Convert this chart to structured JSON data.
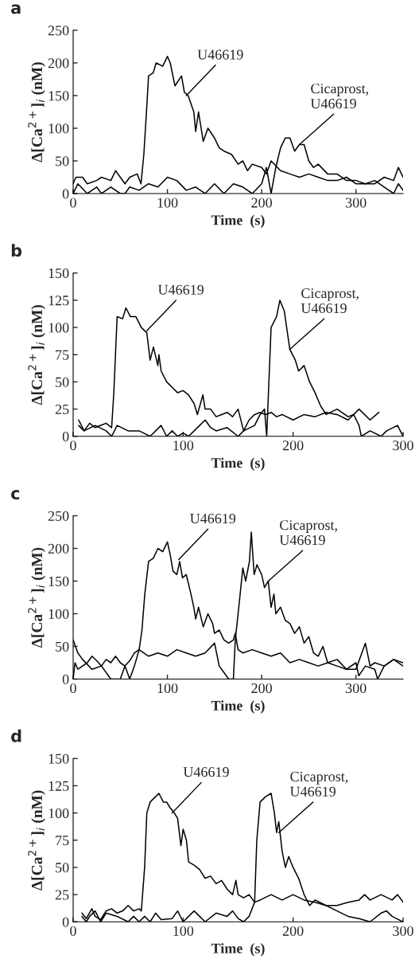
{
  "chart_data": [
    {
      "type": "line",
      "title": "a",
      "xlabel": "Time  (s)",
      "ylabel": "Δ[Ca$^{2+}$]$_{i}$ (nM)",
      "xlim": [
        0,
        350
      ],
      "xticks": [
        0,
        100,
        200,
        300
      ],
      "ylim": [
        0,
        250
      ],
      "yticks": [
        0,
        50,
        100,
        150,
        200,
        250
      ],
      "grid": false,
      "legend": false,
      "marker": "none",
      "line_style": "solid",
      "annotations": [
        {
          "text": "U46619",
          "x": 120,
          "y": 150
        },
        {
          "text": "Cicaprost,\nU46619",
          "x": 240,
          "y": 75
        }
      ],
      "series": [
        {
          "color": "#000000",
          "x": [
            0,
            3,
            10,
            15,
            25,
            30,
            40,
            45,
            50,
            55,
            60,
            68,
            72,
            75,
            78,
            80,
            85,
            88,
            95,
            100,
            103,
            108,
            115,
            118,
            122,
            128,
            130,
            133,
            138,
            143,
            150,
            155,
            160,
            168,
            175,
            180,
            185,
            190,
            200,
            205,
            210,
            220,
            230,
            240,
            250,
            260,
            270,
            280,
            290,
            300,
            310,
            320,
            330,
            340,
            345,
            350
          ],
          "values": [
            15,
            25,
            25,
            15,
            20,
            25,
            20,
            35,
            25,
            15,
            25,
            30,
            15,
            60,
            130,
            180,
            185,
            200,
            195,
            210,
            200,
            165,
            180,
            155,
            150,
            125,
            95,
            125,
            80,
            100,
            85,
            70,
            65,
            60,
            45,
            50,
            35,
            45,
            40,
            30,
            50,
            35,
            30,
            25,
            30,
            25,
            20,
            20,
            25,
            15,
            15,
            15,
            25,
            20,
            40,
            25
          ]
        },
        {
          "color": "#000000",
          "x": [
            0,
            5,
            15,
            25,
            30,
            40,
            50,
            55,
            60,
            70,
            80,
            90,
            100,
            110,
            120,
            130,
            140,
            150,
            160,
            170,
            180,
            190,
            200,
            205,
            210,
            215,
            220,
            225,
            230,
            235,
            240,
            245,
            250,
            255,
            260,
            270,
            280,
            290,
            300,
            310,
            320,
            330,
            340,
            345,
            350
          ],
          "values": [
            0,
            15,
            0,
            10,
            0,
            10,
            0,
            0,
            10,
            5,
            15,
            10,
            25,
            20,
            5,
            10,
            0,
            15,
            0,
            15,
            10,
            0,
            15,
            40,
            0,
            40,
            70,
            85,
            85,
            65,
            75,
            75,
            50,
            40,
            45,
            30,
            30,
            20,
            20,
            15,
            20,
            10,
            0,
            15,
            5
          ]
        }
      ]
    },
    {
      "type": "line",
      "title": "b",
      "xlabel": "Time  (s)",
      "ylabel": "Δ[Ca$^{2+}$]$_{i}$ (nM)",
      "xlim": [
        0,
        300
      ],
      "xticks": [
        0,
        100,
        200,
        300
      ],
      "ylim": [
        0,
        150
      ],
      "yticks": [
        0,
        25,
        50,
        75,
        100,
        125,
        150
      ],
      "grid": false,
      "legend": false,
      "marker": "none",
      "line_style": "solid",
      "annotations": [
        {
          "text": "U46619",
          "x": 67,
          "y": 97
        },
        {
          "text": "Cicaprost,\nU46619",
          "x": 197,
          "y": 80
        }
      ],
      "series": [
        {
          "color": "#000000",
          "x": [
            5,
            10,
            15,
            20,
            25,
            30,
            35,
            37,
            40,
            45,
            48,
            52,
            57,
            62,
            67,
            70,
            73,
            77,
            78,
            80,
            85,
            90,
            95,
            100,
            105,
            110,
            113,
            118,
            120,
            125,
            130,
            135,
            140,
            145,
            150,
            155,
            160,
            165,
            170,
            175,
            180,
            185,
            190,
            200,
            210,
            220,
            230,
            240,
            250,
            260,
            270,
            278
          ],
          "values": [
            15,
            5,
            12,
            8,
            10,
            12,
            8,
            40,
            110,
            108,
            118,
            110,
            110,
            100,
            95,
            70,
            82,
            65,
            75,
            60,
            50,
            45,
            40,
            42,
            38,
            30,
            20,
            38,
            25,
            25,
            18,
            20,
            22,
            18,
            25,
            5,
            15,
            20,
            22,
            20,
            22,
            18,
            20,
            15,
            20,
            18,
            22,
            20,
            15,
            25,
            15,
            22
          ]
        },
        {
          "color": "#000000",
          "x": [
            5,
            10,
            20,
            30,
            35,
            40,
            50,
            60,
            70,
            80,
            85,
            90,
            95,
            100,
            105,
            115,
            120,
            125,
            130,
            140,
            150,
            155,
            165,
            170,
            174,
            176,
            180,
            185,
            188,
            192,
            197,
            202,
            205,
            210,
            215,
            220,
            225,
            230,
            240,
            250,
            255,
            260,
            262,
            270,
            280,
            285,
            295,
            300
          ],
          "values": [
            10,
            5,
            10,
            5,
            0,
            10,
            5,
            5,
            0,
            10,
            0,
            5,
            0,
            3,
            0,
            10,
            15,
            8,
            5,
            8,
            0,
            5,
            10,
            20,
            25,
            0,
            100,
            110,
            125,
            115,
            80,
            70,
            60,
            65,
            50,
            40,
            28,
            20,
            25,
            18,
            20,
            10,
            0,
            5,
            0,
            5,
            10,
            0
          ]
        }
      ]
    },
    {
      "type": "line",
      "title": "c",
      "xlabel": "Time  (s)",
      "ylabel": "Δ[Ca$^{2+}$]$_{i}$ (nM)",
      "xlim": [
        0,
        350
      ],
      "xticks": [
        0,
        100,
        200,
        300
      ],
      "ylim": [
        0,
        250
      ],
      "yticks": [
        0,
        50,
        100,
        150,
        200,
        250
      ],
      "grid": false,
      "legend": false,
      "marker": "none",
      "line_style": "solid",
      "annotations": [
        {
          "text": "U46619",
          "x": 112,
          "y": 183
        },
        {
          "text": "Cicaprost,\nU46619",
          "x": 207,
          "y": 150
        }
      ],
      "series": [
        {
          "color": "#000000",
          "x": [
            0,
            2,
            5,
            10,
            15,
            20,
            25,
            30,
            35,
            40,
            45,
            50,
            55,
            60,
            65,
            70,
            73,
            76,
            80,
            85,
            90,
            95,
            100,
            103,
            106,
            110,
            113,
            116,
            120,
            125,
            128,
            130,
            133,
            138,
            143,
            148,
            150,
            155,
            160,
            165,
            170,
            172,
            175,
            180,
            190,
            200,
            210,
            220,
            230,
            240,
            250,
            260,
            270,
            280,
            290,
            300,
            310,
            315,
            320,
            330,
            340,
            350
          ],
          "values": [
            0,
            25,
            15,
            20,
            25,
            35,
            28,
            20,
            30,
            25,
            35,
            25,
            20,
            28,
            40,
            45,
            75,
            130,
            180,
            185,
            200,
            195,
            210,
            190,
            165,
            160,
            180,
            155,
            160,
            130,
            110,
            92,
            110,
            80,
            100,
            85,
            70,
            75,
            60,
            55,
            60,
            70,
            45,
            40,
            45,
            40,
            35,
            40,
            25,
            30,
            25,
            20,
            25,
            20,
            15,
            15,
            55,
            20,
            25,
            20,
            30,
            25
          ]
        },
        {
          "color": "#000000",
          "x": [
            0,
            5,
            10,
            20,
            30,
            40,
            50,
            55,
            60,
            65,
            70,
            80,
            90,
            100,
            110,
            120,
            130,
            140,
            150,
            155,
            160,
            165,
            170,
            172,
            175,
            180,
            183,
            187,
            189,
            192,
            195,
            200,
            203,
            207,
            210,
            213,
            215,
            220,
            225,
            230,
            235,
            240,
            245,
            250,
            255,
            260,
            265,
            270,
            280,
            290,
            300,
            303,
            310,
            320,
            323,
            330,
            340,
            350
          ],
          "values": [
            60,
            40,
            30,
            15,
            20,
            0,
            0,
            20,
            0,
            20,
            45,
            35,
            40,
            35,
            45,
            40,
            35,
            40,
            55,
            20,
            10,
            0,
            0,
            60,
            100,
            170,
            150,
            180,
            225,
            160,
            175,
            160,
            140,
            150,
            110,
            130,
            100,
            110,
            90,
            85,
            70,
            80,
            55,
            65,
            40,
            35,
            50,
            25,
            30,
            15,
            25,
            5,
            20,
            15,
            0,
            20,
            30,
            20
          ]
        }
      ]
    },
    {
      "type": "line",
      "title": "d",
      "xlabel": "Time  (s)",
      "ylabel": "Δ[Ca$^{2+}$]$_{i}$ (nM)",
      "xlim": [
        0,
        300
      ],
      "xticks": [
        0,
        100,
        200,
        300
      ],
      "ylim": [
        0,
        150
      ],
      "yticks": [
        0,
        25,
        50,
        75,
        100,
        125,
        150
      ],
      "grid": false,
      "legend": false,
      "marker": "none",
      "line_style": "solid",
      "annotations": [
        {
          "text": "U46619",
          "x": 90,
          "y": 100
        },
        {
          "text": "Cicaprost,\nU46619",
          "x": 187,
          "y": 82
        }
      ],
      "series": [
        {
          "color": "#000000",
          "x": [
            8,
            12,
            17,
            20,
            25,
            30,
            35,
            40,
            45,
            50,
            55,
            60,
            62,
            65,
            67,
            70,
            75,
            78,
            82,
            85,
            88,
            92,
            95,
            98,
            100,
            103,
            105,
            110,
            115,
            120,
            125,
            130,
            135,
            140,
            145,
            148,
            150,
            155,
            160,
            165,
            170,
            180,
            190,
            200,
            210,
            220,
            230,
            240,
            250,
            260,
            270,
            280,
            285,
            290,
            300
          ],
          "values": [
            8,
            3,
            12,
            5,
            2,
            10,
            12,
            8,
            10,
            15,
            10,
            12,
            10,
            50,
            100,
            110,
            115,
            118,
            110,
            110,
            105,
            100,
            95,
            70,
            85,
            75,
            55,
            52,
            48,
            40,
            42,
            35,
            38,
            30,
            25,
            38,
            25,
            22,
            25,
            18,
            20,
            25,
            20,
            25,
            20,
            18,
            15,
            10,
            5,
            3,
            0,
            8,
            10,
            5,
            0
          ]
        },
        {
          "color": "#000000",
          "x": [
            8,
            12,
            15,
            20,
            25,
            30,
            40,
            50,
            55,
            60,
            65,
            70,
            75,
            80,
            90,
            95,
            100,
            110,
            115,
            120,
            130,
            140,
            145,
            150,
            155,
            160,
            165,
            167,
            170,
            175,
            180,
            183,
            185,
            187,
            190,
            193,
            196,
            200,
            205,
            210,
            215,
            220,
            230,
            240,
            250,
            260,
            265,
            270,
            280,
            290,
            295,
            300
          ],
          "values": [
            5,
            0,
            5,
            10,
            0,
            8,
            5,
            0,
            5,
            0,
            5,
            0,
            8,
            2,
            3,
            10,
            0,
            10,
            5,
            0,
            8,
            5,
            10,
            3,
            0,
            5,
            18,
            75,
            110,
            115,
            118,
            100,
            82,
            92,
            65,
            50,
            60,
            50,
            40,
            25,
            15,
            20,
            15,
            15,
            18,
            20,
            25,
            20,
            25,
            20,
            25,
            18
          ]
        }
      ]
    }
  ]
}
